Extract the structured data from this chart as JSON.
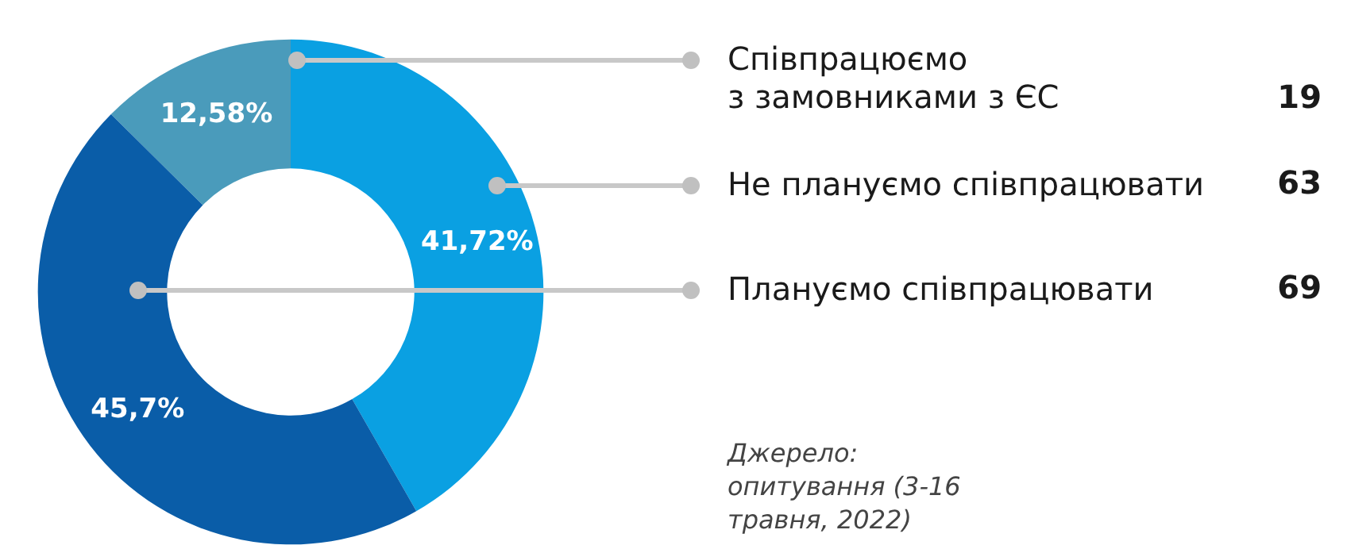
{
  "chart_data": {
    "type": "donut",
    "categories": [
      "Співпрацюємо\nз замовниками з ЄС",
      "Не плануємо співпрацювати",
      "Плануємо співпрацювати"
    ],
    "values": [
      12.58,
      41.72,
      45.7
    ],
    "colors": [
      "#4a9bbb",
      "#0aa0e2",
      "#0a5da8"
    ],
    "value_labels": [
      "12,58%",
      "41,72%",
      "45,7%"
    ],
    "annotations": [
      "19",
      "63",
      "69",
      "Джерело: опитування (3-16 травня, 2022)"
    ]
  }
}
